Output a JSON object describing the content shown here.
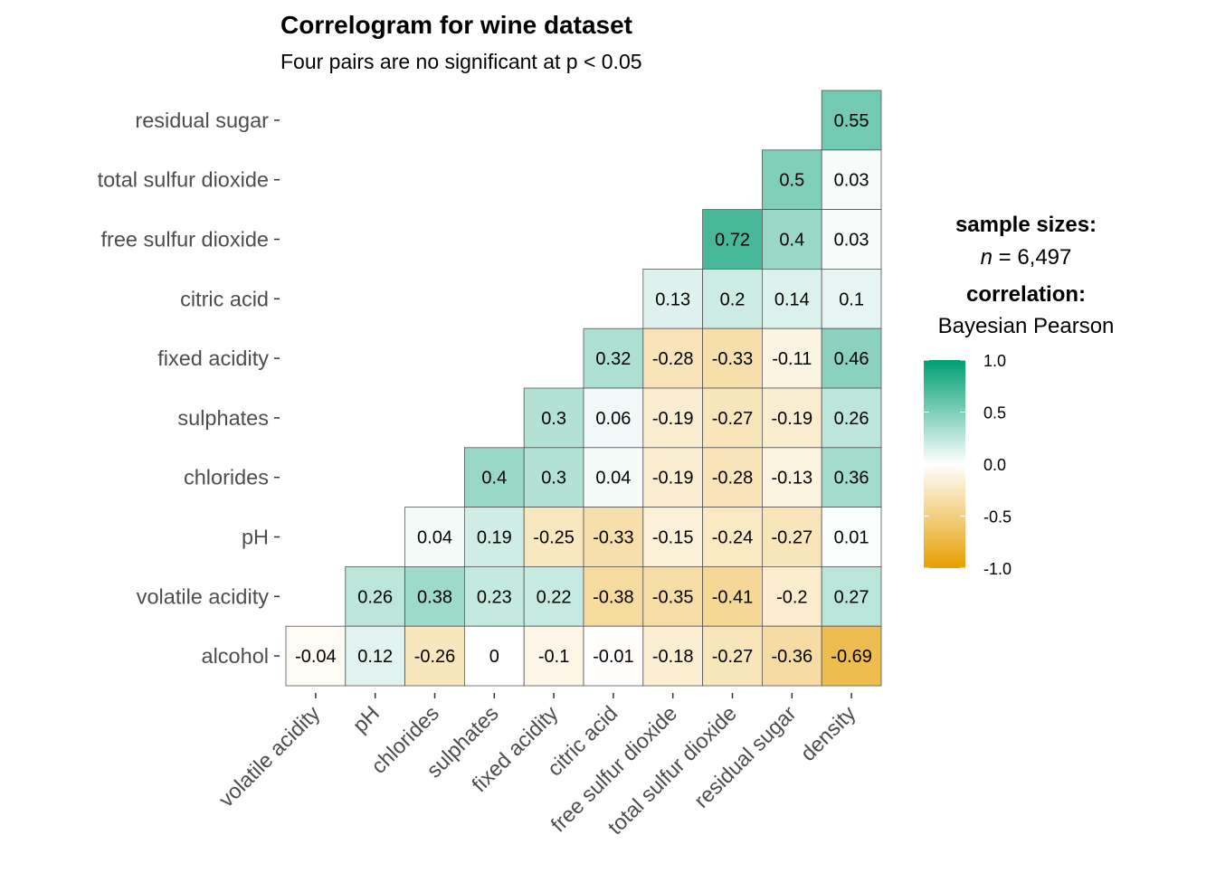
{
  "chart_data": {
    "type": "heatmap",
    "title": "Correlogram for wine dataset",
    "subtitle": "Four pairs are no significant at p < 0.05",
    "x_categories": [
      "volatile acidity",
      "pH",
      "chlorides",
      "sulphates",
      "fixed acidity",
      "citric acid",
      "free sulfur dioxide",
      "total sulfur dioxide",
      "residual sugar",
      "density"
    ],
    "y_categories": [
      "residual sugar",
      "total sulfur dioxide",
      "free sulfur dioxide",
      "citric acid",
      "fixed acidity",
      "sulphates",
      "chlorides",
      "pH",
      "volatile acidity",
      "alcohol"
    ],
    "values": [
      [
        null,
        null,
        null,
        null,
        null,
        null,
        null,
        null,
        null,
        0.55
      ],
      [
        null,
        null,
        null,
        null,
        null,
        null,
        null,
        null,
        0.5,
        0.03
      ],
      [
        null,
        null,
        null,
        null,
        null,
        null,
        null,
        0.72,
        0.4,
        0.03
      ],
      [
        null,
        null,
        null,
        null,
        null,
        null,
        0.13,
        0.2,
        0.14,
        0.1
      ],
      [
        null,
        null,
        null,
        null,
        null,
        0.32,
        -0.28,
        -0.33,
        -0.11,
        0.46
      ],
      [
        null,
        null,
        null,
        null,
        0.3,
        0.06,
        -0.19,
        -0.27,
        -0.19,
        0.26
      ],
      [
        null,
        null,
        null,
        0.4,
        0.3,
        0.04,
        -0.19,
        -0.28,
        -0.13,
        0.36
      ],
      [
        null,
        null,
        0.04,
        0.19,
        -0.25,
        -0.33,
        -0.15,
        -0.24,
        -0.27,
        0.01
      ],
      [
        null,
        0.26,
        0.38,
        0.23,
        0.22,
        -0.38,
        -0.35,
        -0.41,
        -0.2,
        0.27
      ],
      [
        -0.04,
        0.12,
        -0.26,
        0,
        -0.1,
        -0.01,
        -0.18,
        -0.27,
        -0.36,
        -0.69
      ]
    ],
    "color_scale": {
      "low": "#E69F00",
      "mid": "#FFFFFF",
      "high": "#009E73",
      "limits": [
        -1,
        1
      ]
    },
    "legend": {
      "placement": "right",
      "sample_title": "sample sizes:",
      "n_symbol": "n",
      "n_text": " = 6,497",
      "corr_title": "correlation:",
      "corr_method": "Bayesian Pearson",
      "ticks": [
        "1.0",
        "0.5",
        "0.0",
        "-0.5",
        "-1.0"
      ],
      "tick_values": [
        1.0,
        0.5,
        0.0,
        -0.5,
        -1.0
      ]
    }
  }
}
